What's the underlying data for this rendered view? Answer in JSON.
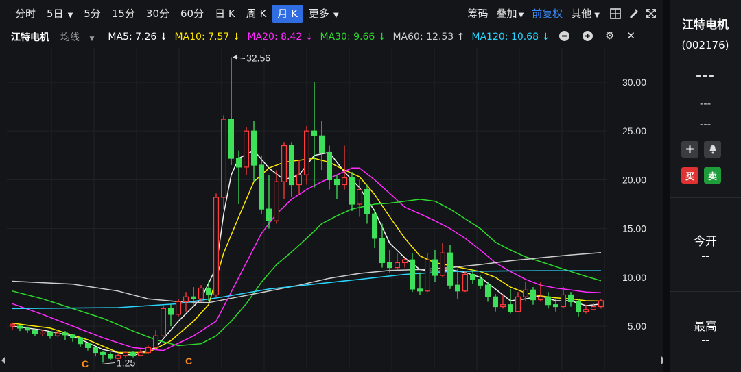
{
  "toolbar": {
    "periods": [
      "分时",
      "5日",
      "5分",
      "15分",
      "30分",
      "60分",
      "日 K",
      "周 K",
      "月 K",
      "更多"
    ],
    "active": "月 K",
    "right": [
      "筹码",
      "叠加",
      "前复权",
      "其他"
    ]
  },
  "stock": {
    "name": "江特电机",
    "code": "(002176)"
  },
  "ma": {
    "label": "均线",
    "items": [
      {
        "text": "MA5: 7.26 ↓",
        "color": "#ffffff"
      },
      {
        "text": "MA10: 7.57 ↓",
        "color": "#ffea00"
      },
      {
        "text": "MA20: 8.42 ↓",
        "color": "#ff2bff"
      },
      {
        "text": "MA30: 9.66 ↓",
        "color": "#2bdc2b"
      },
      {
        "text": "MA60: 12.53 ↑",
        "color": "#cfcfcf"
      },
      {
        "text": "MA120: 10.68 ↓",
        "color": "#29d6ff"
      }
    ]
  },
  "axis": {
    "ticks": [
      "30.00",
      "25.00",
      "20.00",
      "15.00",
      "10.00",
      "5.00"
    ]
  },
  "annotations": {
    "high": "32.56",
    "low": "1.25",
    "marker": "C"
  },
  "sidebar": {
    "price": "---",
    "dash1": "---",
    "dash2": "---",
    "buy": "买",
    "sell": "卖",
    "open_label": "今开",
    "open_val": "--",
    "high_label": "最高",
    "high_val": "--"
  },
  "colors": {
    "up": "#ff3b3b",
    "down": "#3ee05a",
    "bg": "#141518",
    "accent": "#2f6de0"
  },
  "chart_data": {
    "type": "candlestick",
    "ylim": [
      1,
      34
    ],
    "ticks": [
      30,
      25,
      20,
      15,
      10,
      5
    ],
    "candles": [
      [
        5,
        5.2,
        4.6,
        5.3
      ],
      [
        5,
        4.8,
        4.5,
        5.1
      ],
      [
        4.8,
        4.6,
        4.3,
        4.9
      ],
      [
        4.6,
        4.2,
        4.0,
        4.7
      ],
      [
        4.2,
        4.4,
        4.0,
        4.6
      ],
      [
        4.4,
        4.0,
        3.7,
        4.5
      ],
      [
        4.0,
        4.3,
        3.9,
        4.6
      ],
      [
        4.3,
        4.1,
        3.6,
        4.5
      ],
      [
        4.1,
        3.8,
        3.4,
        4.2
      ],
      [
        3.8,
        3.2,
        2.9,
        3.9
      ],
      [
        3.2,
        2.8,
        2.5,
        3.3
      ],
      [
        2.8,
        2.3,
        1.9,
        2.9
      ],
      [
        2.3,
        2.1,
        1.25,
        2.4
      ],
      [
        2.1,
        1.7,
        1.5,
        2.3
      ],
      [
        1.7,
        2.0,
        1.6,
        2.2
      ],
      [
        2.0,
        2.3,
        1.8,
        2.4
      ],
      [
        2.3,
        2.0,
        1.8,
        2.4
      ],
      [
        2.0,
        2.3,
        1.9,
        2.6
      ],
      [
        2.3,
        2.8,
        2.2,
        3.0
      ],
      [
        2.8,
        4.0,
        2.6,
        4.6
      ],
      [
        4.0,
        6.8,
        3.9,
        7.2
      ],
      [
        6.8,
        6.2,
        5.0,
        7.2
      ],
      [
        6.2,
        7.5,
        6.0,
        7.8
      ],
      [
        7.5,
        8.0,
        6.5,
        8.5
      ],
      [
        8.0,
        7.8,
        7.2,
        9.0
      ],
      [
        7.8,
        8.9,
        7.5,
        9.2
      ],
      [
        8.9,
        8.2,
        7.5,
        9.6
      ],
      [
        8.2,
        18.2,
        8.0,
        18.6
      ],
      [
        18.2,
        26.2,
        17.0,
        26.6
      ],
      [
        26.2,
        22.2,
        21.5,
        32.56
      ],
      [
        22.2,
        21.3,
        17.5,
        23.0
      ],
      [
        21.3,
        25.0,
        20.5,
        25.4
      ],
      [
        25.0,
        21.5,
        19.8,
        26.0
      ],
      [
        21.5,
        17.0,
        16.5,
        22.5
      ],
      [
        17.0,
        15.8,
        15.0,
        20.5
      ],
      [
        15.8,
        19.8,
        15.5,
        21.0
      ],
      [
        19.8,
        23.5,
        18.0,
        23.8
      ],
      [
        23.5,
        19.5,
        18.2,
        23.8
      ],
      [
        19.5,
        20.5,
        18.5,
        22.0
      ],
      [
        20.5,
        25.0,
        19.5,
        25.5
      ],
      [
        25.0,
        24.5,
        19.2,
        30.0
      ],
      [
        24.5,
        22.8,
        21.0,
        26.0
      ],
      [
        22.8,
        20.0,
        19.0,
        23.5
      ],
      [
        20.0,
        19.5,
        18.0,
        20.5
      ],
      [
        19.5,
        20.2,
        19.0,
        23.5
      ],
      [
        20.2,
        17.5,
        16.8,
        20.8
      ],
      [
        17.5,
        19.0,
        16.2,
        20.0
      ],
      [
        19.0,
        16.5,
        15.5,
        19.5
      ],
      [
        16.5,
        14.0,
        13.0,
        17.0
      ],
      [
        14.0,
        11.5,
        11.0,
        15.5
      ],
      [
        11.5,
        11.0,
        10.5,
        12.8
      ],
      [
        11.0,
        11.5,
        10.8,
        12.5
      ],
      [
        11.5,
        11.8,
        11.0,
        12.0
      ],
      [
        11.8,
        8.8,
        8.5,
        12.5
      ],
      [
        8.8,
        8.6,
        8.2,
        10.5
      ],
      [
        8.6,
        11.8,
        8.5,
        12.5
      ],
      [
        11.8,
        10.2,
        9.5,
        12.8
      ],
      [
        10.2,
        12.5,
        10.0,
        13.5
      ],
      [
        12.5,
        9.2,
        8.8,
        13.3
      ],
      [
        9.2,
        8.6,
        7.8,
        10.8
      ],
      [
        8.6,
        10.3,
        8.5,
        10.6
      ],
      [
        10.3,
        9.8,
        9.3,
        10.8
      ],
      [
        9.8,
        9.2,
        8.8,
        10.2
      ],
      [
        9.2,
        8.0,
        7.5,
        9.5
      ],
      [
        8.0,
        7.0,
        6.5,
        8.3
      ],
      [
        7.0,
        7.2,
        6.8,
        8.2
      ],
      [
        7.2,
        6.5,
        6.3,
        8.8
      ],
      [
        6.5,
        8.0,
        6.4,
        8.5
      ],
      [
        8.0,
        8.7,
        7.6,
        9.5
      ],
      [
        8.7,
        7.7,
        7.2,
        9.0
      ],
      [
        7.7,
        8.0,
        7.5,
        9.5
      ],
      [
        8.0,
        7.2,
        6.8,
        8.5
      ],
      [
        7.2,
        7.0,
        6.5,
        7.8
      ],
      [
        7.0,
        8.2,
        6.9,
        9.0
      ],
      [
        8.2,
        7.5,
        7.0,
        8.5
      ],
      [
        7.5,
        6.5,
        6.0,
        7.8
      ],
      [
        6.5,
        6.7,
        6.3,
        7.2
      ],
      [
        6.7,
        7.0,
        6.6,
        7.4
      ],
      [
        7.0,
        7.6,
        6.8,
        7.8
      ]
    ],
    "series": [
      {
        "name": "MA5",
        "color": "#f2f2f2",
        "values": [
          [
            0,
            5.0
          ],
          [
            4,
            4.6
          ],
          [
            8,
            4.0
          ],
          [
            12,
            2.6
          ],
          [
            16,
            2.0
          ],
          [
            19,
            2.8
          ],
          [
            22,
            5.5
          ],
          [
            25,
            7.8
          ],
          [
            27,
            11
          ],
          [
            28,
            16.5
          ],
          [
            29,
            20.5
          ],
          [
            30,
            22.2
          ],
          [
            32,
            23.0
          ],
          [
            34,
            21.2
          ],
          [
            36,
            20.0
          ],
          [
            38,
            20.5
          ],
          [
            40,
            22.5
          ],
          [
            42,
            22.8
          ],
          [
            44,
            20.8
          ],
          [
            46,
            19.2
          ],
          [
            48,
            16.8
          ],
          [
            50,
            13.5
          ],
          [
            52,
            12.0
          ],
          [
            54,
            10.8
          ],
          [
            56,
            10.6
          ],
          [
            58,
            10.8
          ],
          [
            60,
            10.5
          ],
          [
            62,
            10.0
          ],
          [
            64,
            8.8
          ],
          [
            66,
            7.6
          ],
          [
            68,
            7.8
          ],
          [
            70,
            8.1
          ],
          [
            72,
            7.6
          ],
          [
            74,
            7.6
          ],
          [
            76,
            7.1
          ],
          [
            78,
            7.26
          ]
        ]
      },
      {
        "name": "MA10",
        "color": "#ffea00",
        "values": [
          [
            0,
            5.3
          ],
          [
            5,
            4.8
          ],
          [
            10,
            3.6
          ],
          [
            14,
            2.3
          ],
          [
            18,
            2.3
          ],
          [
            21,
            3.5
          ],
          [
            24,
            5.5
          ],
          [
            26,
            7.2
          ],
          [
            28,
            12.5
          ],
          [
            30,
            16.2
          ],
          [
            32,
            19.8
          ],
          [
            34,
            21.2
          ],
          [
            36,
            21.8
          ],
          [
            38,
            22.0
          ],
          [
            40,
            22.2
          ],
          [
            42,
            21.8
          ],
          [
            44,
            21.0
          ],
          [
            46,
            20.3
          ],
          [
            48,
            18.5
          ],
          [
            50,
            16.2
          ],
          [
            52,
            14.0
          ],
          [
            54,
            12.2
          ],
          [
            56,
            11.5
          ],
          [
            58,
            11.2
          ],
          [
            60,
            10.9
          ],
          [
            62,
            10.6
          ],
          [
            64,
            10.0
          ],
          [
            66,
            9.0
          ],
          [
            68,
            8.4
          ],
          [
            70,
            8.1
          ],
          [
            72,
            7.9
          ],
          [
            74,
            7.8
          ],
          [
            76,
            7.6
          ],
          [
            78,
            7.57
          ]
        ]
      },
      {
        "name": "MA20",
        "color": "#ff2bff",
        "values": [
          [
            0,
            7.3
          ],
          [
            4,
            6.2
          ],
          [
            8,
            5.0
          ],
          [
            12,
            3.8
          ],
          [
            16,
            2.8
          ],
          [
            20,
            2.5
          ],
          [
            24,
            4.0
          ],
          [
            27,
            5.5
          ],
          [
            29,
            8.5
          ],
          [
            31,
            11.5
          ],
          [
            33,
            14.5
          ],
          [
            35,
            16.5
          ],
          [
            37,
            18.0
          ],
          [
            39,
            19.0
          ],
          [
            41,
            19.8
          ],
          [
            43,
            20.5
          ],
          [
            45,
            21.2
          ],
          [
            46,
            21.2
          ],
          [
            48,
            20.0
          ],
          [
            50,
            18.6
          ],
          [
            52,
            17.2
          ],
          [
            54,
            16.5
          ],
          [
            56,
            15.8
          ],
          [
            58,
            15.0
          ],
          [
            60,
            14.0
          ],
          [
            62,
            12.8
          ],
          [
            64,
            11.5
          ],
          [
            66,
            10.6
          ],
          [
            68,
            9.8
          ],
          [
            70,
            9.2
          ],
          [
            72,
            8.9
          ],
          [
            74,
            8.7
          ],
          [
            76,
            8.5
          ],
          [
            78,
            8.42
          ]
        ]
      },
      {
        "name": "MA30",
        "color": "#2bdc2b",
        "values": [
          [
            0,
            8.6
          ],
          [
            4,
            7.8
          ],
          [
            8,
            6.8
          ],
          [
            12,
            5.8
          ],
          [
            16,
            4.5
          ],
          [
            19,
            3.6
          ],
          [
            22,
            3.0
          ],
          [
            25,
            3.2
          ],
          [
            27,
            4.0
          ],
          [
            29,
            5.5
          ],
          [
            31,
            7.3
          ],
          [
            33,
            9.5
          ],
          [
            35,
            11.3
          ],
          [
            37,
            12.6
          ],
          [
            39,
            14.0
          ],
          [
            41,
            15.5
          ],
          [
            43,
            16.3
          ],
          [
            45,
            17.0
          ],
          [
            48,
            17.5
          ],
          [
            50,
            17.6
          ],
          [
            52,
            17.8
          ],
          [
            54,
            18.0
          ],
          [
            56,
            17.8
          ],
          [
            58,
            17.0
          ],
          [
            60,
            16.0
          ],
          [
            62,
            15.0
          ],
          [
            64,
            13.6
          ],
          [
            66,
            12.8
          ],
          [
            68,
            12.1
          ],
          [
            70,
            11.6
          ],
          [
            72,
            11.1
          ],
          [
            74,
            10.6
          ],
          [
            76,
            10.1
          ],
          [
            78,
            9.66
          ]
        ]
      },
      {
        "name": "MA60",
        "color": "#cfcfcf",
        "values": [
          [
            0,
            9.6
          ],
          [
            8,
            9.3
          ],
          [
            14,
            8.6
          ],
          [
            18,
            7.8
          ],
          [
            22,
            7.5
          ],
          [
            26,
            7.4
          ],
          [
            30,
            8.0
          ],
          [
            34,
            8.6
          ],
          [
            38,
            9.2
          ],
          [
            42,
            9.9
          ],
          [
            46,
            10.4
          ],
          [
            50,
            10.7
          ],
          [
            54,
            10.8
          ],
          [
            58,
            11.0
          ],
          [
            62,
            11.3
          ],
          [
            66,
            11.7
          ],
          [
            70,
            12.0
          ],
          [
            74,
            12.3
          ],
          [
            78,
            12.53
          ]
        ]
      },
      {
        "name": "MA120",
        "color": "#29d6ff",
        "values": [
          [
            0,
            6.8
          ],
          [
            14,
            6.9
          ],
          [
            22,
            7.3
          ],
          [
            28,
            8.0
          ],
          [
            34,
            8.8
          ],
          [
            40,
            9.3
          ],
          [
            46,
            9.8
          ],
          [
            52,
            10.3
          ],
          [
            58,
            10.6
          ],
          [
            64,
            10.65
          ],
          [
            70,
            10.68
          ],
          [
            78,
            10.68
          ]
        ]
      }
    ]
  }
}
